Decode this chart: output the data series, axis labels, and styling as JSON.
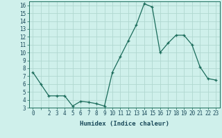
{
  "x": [
    0,
    1,
    2,
    3,
    4,
    5,
    6,
    7,
    8,
    9,
    10,
    11,
    12,
    13,
    14,
    15,
    16,
    17,
    18,
    19,
    20,
    21,
    22,
    23
  ],
  "y": [
    7.5,
    6.0,
    4.5,
    4.5,
    4.5,
    3.2,
    3.8,
    3.7,
    3.5,
    3.2,
    7.5,
    9.5,
    11.5,
    13.5,
    16.2,
    15.8,
    10.0,
    11.2,
    12.2,
    12.2,
    11.0,
    8.2,
    6.7,
    6.5
  ],
  "xlabel": "Humidex (Indice chaleur)",
  "ylabel": "",
  "xlim": [
    -0.5,
    23.5
  ],
  "ylim": [
    3,
    16.5
  ],
  "yticks": [
    3,
    4,
    5,
    6,
    7,
    8,
    9,
    10,
    11,
    12,
    13,
    14,
    15,
    16
  ],
  "xticks": [
    0,
    1,
    2,
    3,
    4,
    5,
    6,
    7,
    8,
    9,
    10,
    11,
    12,
    13,
    14,
    15,
    16,
    17,
    18,
    19,
    20,
    21,
    22,
    23
  ],
  "xtick_labels": [
    "0",
    "",
    "2",
    "3",
    "4",
    "5",
    "6",
    "7",
    "8",
    "9",
    "10",
    "11",
    "12",
    "13",
    "14",
    "15",
    "16",
    "17",
    "18",
    "19",
    "20",
    "21",
    "22",
    "23"
  ],
  "line_color": "#1a6b5a",
  "marker": "+",
  "bg_color": "#cff0eb",
  "grid_color": "#b0d8d0",
  "font_color": "#1a4a5a",
  "font_size": 5.5,
  "xlabel_fontsize": 6.5
}
